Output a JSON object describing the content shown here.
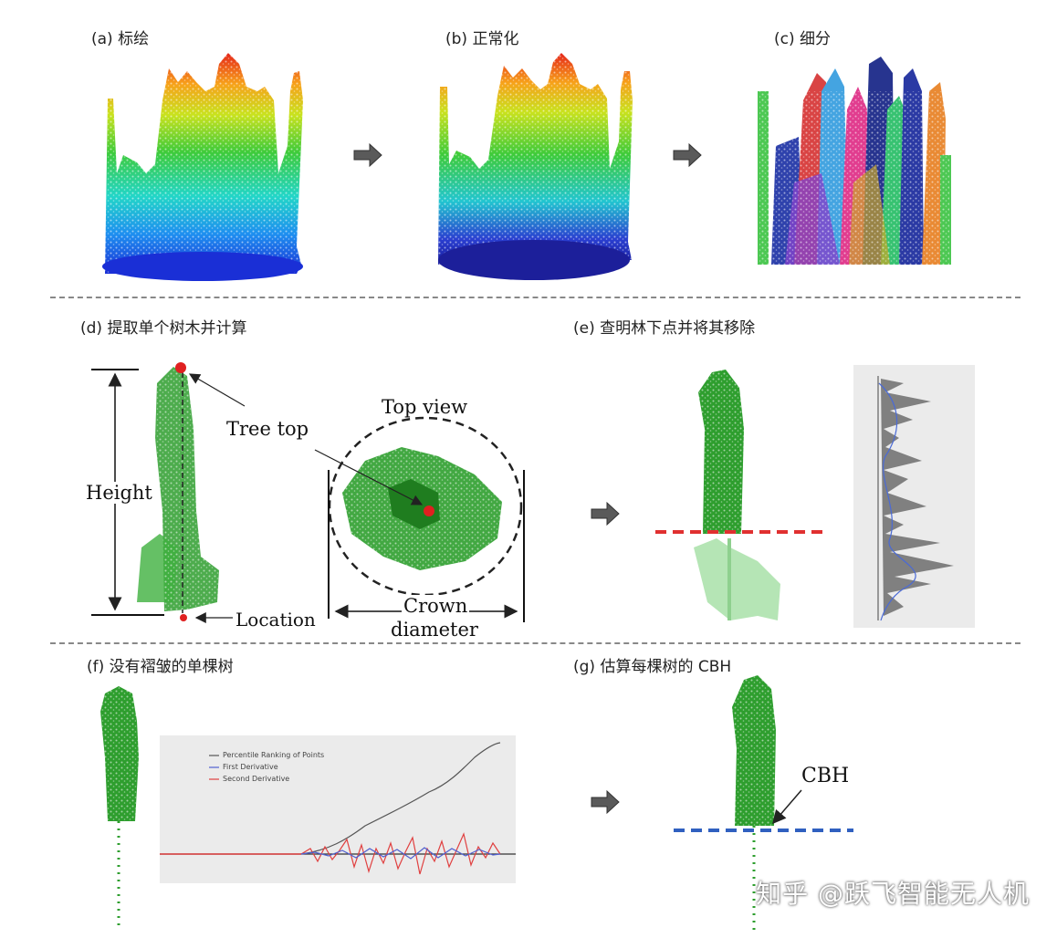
{
  "panels": {
    "a": "(a) 标绘",
    "b": "(b) 正常化",
    "c": "(c) 细分",
    "d": "(d) 提取单个树木并计算",
    "e": "(e) 查明林下点并将其移除",
    "f": "(f) 没有褶皱的单棵树",
    "g": "(g) 估算每棵树的 CBH"
  },
  "annotations": {
    "height": "Height",
    "tree_top": "Tree top",
    "top_view": "Top view",
    "crown": "Crown",
    "diameter": "diameter",
    "location": "Location",
    "cbh": "CBH"
  },
  "chart_legend": {
    "items": [
      "Percentile Ranking of Points",
      "First Derivative",
      "Second Derivative"
    ]
  },
  "watermark": "知乎 @跃飞智能无人机",
  "colors": {
    "tree_green": "#2e9e2e",
    "marker_red": "#e02020",
    "cutline_red": "#e03030",
    "cbh_blue": "#3060c0"
  }
}
